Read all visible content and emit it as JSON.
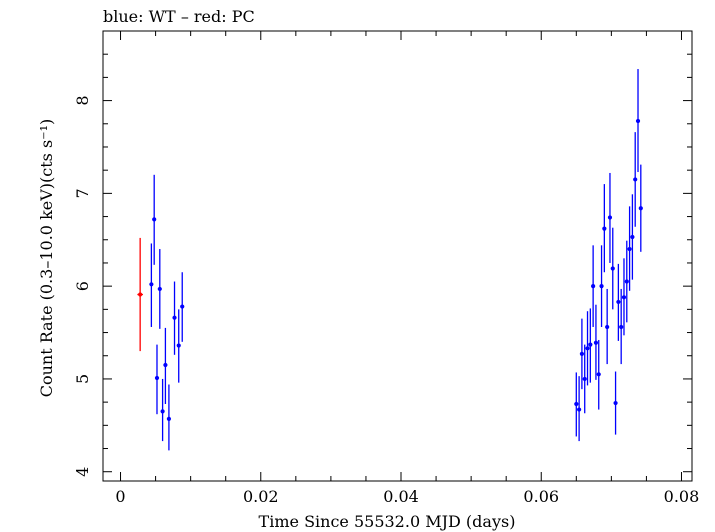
{
  "chart_data": {
    "type": "scatter",
    "title": "blue: WT – red: PC",
    "xlabel": "Time Since 55532.0 MJD (days)",
    "ylabel": "Count Rate (0.3–10.0 keV)(cts s⁻¹)",
    "xlim": [
      -0.0025,
      0.0815
    ],
    "ylim": [
      3.9,
      8.75
    ],
    "xticks": [
      0,
      0.02,
      0.04,
      0.06,
      0.08
    ],
    "xtick_labels": [
      "0",
      "0.02",
      "0.04",
      "0.06",
      "0.08"
    ],
    "yticks": [
      4,
      5,
      6,
      7,
      8
    ],
    "ytick_labels": [
      "4",
      "5",
      "6",
      "7",
      "8"
    ],
    "grid": false,
    "series": [
      {
        "name": "PC",
        "color": "#ff0000",
        "points": [
          {
            "x": 0.0028,
            "y": 5.91,
            "xerr": 0.0004,
            "ylo": 5.3,
            "yhi": 6.52
          }
        ]
      },
      {
        "name": "WT",
        "color": "#0000ff",
        "points": [
          {
            "x": 0.0044,
            "y": 6.02,
            "ylo": 5.56,
            "yhi": 6.46
          },
          {
            "x": 0.0048,
            "y": 6.72,
            "ylo": 6.23,
            "yhi": 7.2
          },
          {
            "x": 0.0052,
            "y": 5.01,
            "ylo": 4.62,
            "yhi": 5.37
          },
          {
            "x": 0.0056,
            "y": 5.97,
            "ylo": 5.54,
            "yhi": 6.4
          },
          {
            "x": 0.006,
            "y": 4.65,
            "ylo": 4.33,
            "yhi": 5.0
          },
          {
            "x": 0.0064,
            "y": 5.15,
            "ylo": 4.73,
            "yhi": 5.55
          },
          {
            "x": 0.0069,
            "y": 4.57,
            "ylo": 4.23,
            "yhi": 4.94
          },
          {
            "x": 0.0077,
            "y": 5.66,
            "ylo": 5.26,
            "yhi": 6.05
          },
          {
            "x": 0.0083,
            "y": 5.36,
            "ylo": 4.96,
            "yhi": 5.75
          },
          {
            "x": 0.0088,
            "y": 5.78,
            "ylo": 5.4,
            "yhi": 6.15
          },
          {
            "x": 0.065,
            "y": 4.73,
            "ylo": 4.38,
            "yhi": 5.07
          },
          {
            "x": 0.0654,
            "y": 4.67,
            "ylo": 4.33,
            "yhi": 5.03
          },
          {
            "x": 0.0658,
            "y": 5.27,
            "ylo": 4.89,
            "yhi": 5.65
          },
          {
            "x": 0.0662,
            "y": 5.0,
            "ylo": 4.63,
            "yhi": 5.37
          },
          {
            "x": 0.0666,
            "y": 5.33,
            "ylo": 4.93,
            "yhi": 5.73
          },
          {
            "x": 0.067,
            "y": 5.37,
            "ylo": 4.96,
            "yhi": 5.76
          },
          {
            "x": 0.0674,
            "y": 6.0,
            "ylo": 5.56,
            "yhi": 6.44
          },
          {
            "x": 0.0678,
            "y": 5.39,
            "ylo": 4.99,
            "yhi": 5.8
          },
          {
            "x": 0.0682,
            "y": 5.05,
            "ylo": 4.67,
            "yhi": 5.42
          },
          {
            "x": 0.0686,
            "y": 6.0,
            "ylo": 5.56,
            "yhi": 6.44
          },
          {
            "x": 0.069,
            "y": 6.62,
            "ylo": 6.15,
            "yhi": 7.1
          },
          {
            "x": 0.0694,
            "y": 5.56,
            "ylo": 5.16,
            "yhi": 5.97
          },
          {
            "x": 0.0698,
            "y": 6.74,
            "ylo": 6.25,
            "yhi": 7.22
          },
          {
            "x": 0.0702,
            "y": 6.19,
            "ylo": 5.75,
            "yhi": 6.63
          },
          {
            "x": 0.0706,
            "y": 4.74,
            "ylo": 4.4,
            "yhi": 5.08
          },
          {
            "x": 0.071,
            "y": 5.83,
            "ylo": 5.41,
            "yhi": 6.24
          },
          {
            "x": 0.0714,
            "y": 5.56,
            "ylo": 5.16,
            "yhi": 5.97
          },
          {
            "x": 0.0718,
            "y": 5.88,
            "ylo": 5.47,
            "yhi": 6.3
          },
          {
            "x": 0.0722,
            "y": 6.05,
            "ylo": 5.61,
            "yhi": 6.49
          },
          {
            "x": 0.0726,
            "y": 6.4,
            "ylo": 5.95,
            "yhi": 6.86
          },
          {
            "x": 0.073,
            "y": 6.53,
            "ylo": 6.07,
            "yhi": 6.99
          },
          {
            "x": 0.0734,
            "y": 7.15,
            "ylo": 6.64,
            "yhi": 7.66
          },
          {
            "x": 0.0738,
            "y": 7.78,
            "ylo": 7.23,
            "yhi": 8.34
          },
          {
            "x": 0.0742,
            "y": 6.84,
            "ylo": 6.37,
            "yhi": 7.31
          }
        ]
      }
    ]
  }
}
